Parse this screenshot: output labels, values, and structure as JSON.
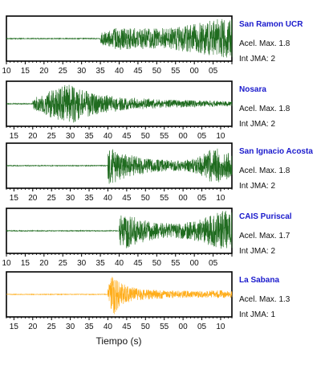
{
  "chart_data": [
    {
      "type": "line",
      "station": "San Ramon UCR",
      "acel_label": "Acel. Max. 1.8",
      "int_label": "Int JMA: 2",
      "color": "#1f6b1f",
      "tick_labels": [
        "10",
        "15",
        "20",
        "25",
        "30",
        "35",
        "40",
        "45",
        "50",
        "55",
        "00",
        "05"
      ],
      "show_ticks": true,
      "xlim": [
        10,
        70
      ],
      "onset": 35,
      "peak_time": 68,
      "amp_pre": 0.02,
      "envelope": [
        [
          35,
          0.3
        ],
        [
          40,
          0.55
        ],
        [
          45,
          0.5
        ],
        [
          50,
          0.5
        ],
        [
          55,
          0.55
        ],
        [
          60,
          0.7
        ],
        [
          64,
          0.85
        ],
        [
          68,
          1.0
        ],
        [
          70,
          0.95
        ]
      ]
    },
    {
      "type": "line",
      "station": "Nosara",
      "acel_label": "Acel. Max. 1.8",
      "int_label": "Int JMA: 2",
      "color": "#1f6b1f",
      "tick_labels": [
        "15",
        "20",
        "25",
        "30",
        "35",
        "40",
        "45",
        "50",
        "55",
        "00",
        "05",
        "10"
      ],
      "show_ticks": true,
      "xlim": [
        13,
        73
      ],
      "onset": 20,
      "peak_time": 30,
      "amp_pre": 0.02,
      "envelope": [
        [
          20,
          0.25
        ],
        [
          24,
          0.6
        ],
        [
          28,
          0.85
        ],
        [
          30,
          1.0
        ],
        [
          33,
          0.7
        ],
        [
          38,
          0.45
        ],
        [
          45,
          0.3
        ],
        [
          55,
          0.2
        ],
        [
          65,
          0.15
        ],
        [
          73,
          0.12
        ]
      ]
    },
    {
      "type": "line",
      "station": "San Ignacio Acosta",
      "acel_label": "Acel. Max. 1.8",
      "int_label": "Int JMA: 2",
      "color": "#1f6b1f",
      "tick_labels": [
        "15",
        "20",
        "25",
        "30",
        "35",
        "40",
        "45",
        "50",
        "55",
        "00",
        "05",
        "10"
      ],
      "show_ticks": true,
      "xlim": [
        13,
        73
      ],
      "onset": 40,
      "peak_time": 41,
      "amp_pre": 0.02,
      "envelope": [
        [
          40,
          0.9
        ],
        [
          42,
          0.8
        ],
        [
          45,
          0.55
        ],
        [
          50,
          0.35
        ],
        [
          55,
          0.28
        ],
        [
          60,
          0.25
        ],
        [
          64,
          0.4
        ],
        [
          67,
          0.75
        ],
        [
          70,
          0.85
        ],
        [
          73,
          0.5
        ]
      ]
    },
    {
      "type": "line",
      "station": "CAIS Puriscal",
      "acel_label": "Acel. Max. 1.7",
      "int_label": "Int JMA: 2",
      "color": "#1f6b1f",
      "tick_labels": [
        "10",
        "15",
        "20",
        "25",
        "30",
        "35",
        "40",
        "45",
        "50",
        "55",
        "00",
        "05"
      ],
      "show_ticks": true,
      "xlim": [
        10,
        70
      ],
      "onset": 40,
      "peak_time": 68,
      "amp_pre": 0.02,
      "envelope": [
        [
          40,
          0.7
        ],
        [
          42,
          0.85
        ],
        [
          45,
          0.6
        ],
        [
          50,
          0.4
        ],
        [
          55,
          0.35
        ],
        [
          60,
          0.45
        ],
        [
          64,
          0.7
        ],
        [
          68,
          1.0
        ],
        [
          70,
          0.95
        ]
      ]
    },
    {
      "type": "line",
      "station": "La Sabana",
      "acel_label": "Acel. Max. 1.3",
      "int_label": "Int JMA: 1",
      "color": "#ffad1a",
      "tick_labels": [
        "15",
        "20",
        "25",
        "30",
        "35",
        "40",
        "45",
        "50",
        "55",
        "00",
        "05",
        "10"
      ],
      "show_ticks": true,
      "xlim": [
        13,
        73
      ],
      "onset": 40,
      "peak_time": 41.5,
      "amp_pre": 0.015,
      "envelope": [
        [
          40,
          0.5
        ],
        [
          41.5,
          1.0
        ],
        [
          43,
          0.6
        ],
        [
          46,
          0.35
        ],
        [
          50,
          0.25
        ],
        [
          55,
          0.2
        ],
        [
          60,
          0.18
        ],
        [
          65,
          0.15
        ],
        [
          70,
          0.2
        ],
        [
          73,
          0.15
        ]
      ]
    }
  ],
  "xlabel": "Tiempo (s)"
}
